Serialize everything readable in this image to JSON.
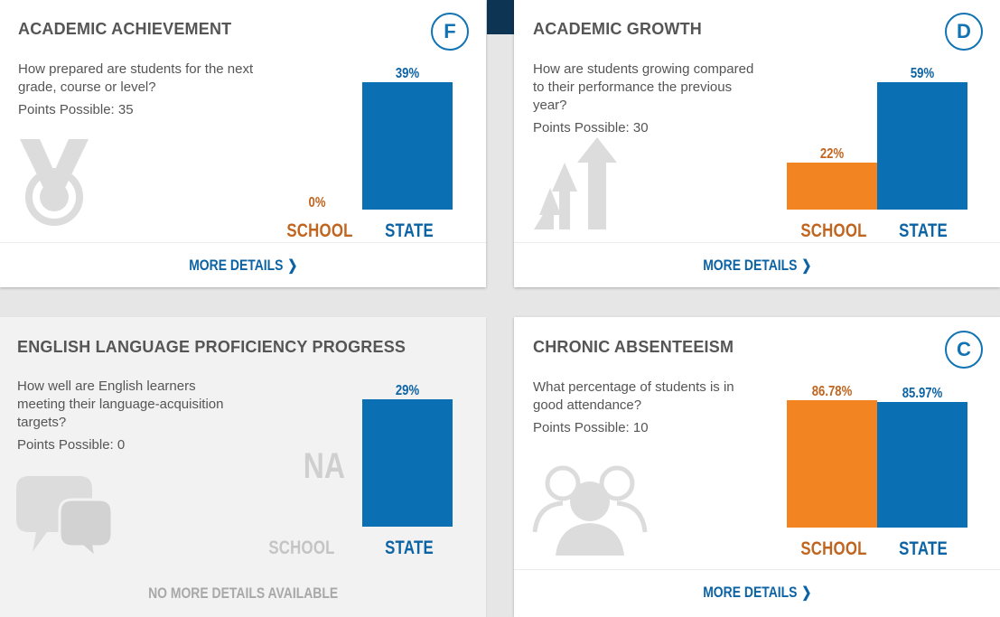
{
  "cards": {
    "academic_achievement": {
      "title": "ACADEMIC ACHIEVEMENT",
      "grade": "F",
      "description": "How prepared are students for the next grade, course or level?",
      "points": "Points Possible: 35",
      "icon": "medal-icon",
      "school": {
        "label": "SCHOOL",
        "value": 0,
        "value_label": "0%"
      },
      "state": {
        "label": "STATE",
        "value": 39,
        "value_label": "39%"
      },
      "link": "MORE DETAILS"
    },
    "academic_growth": {
      "title": "ACADEMIC GROWTH",
      "grade": "D",
      "description": "How are students growing compared to their performance the previous year?",
      "points": "Points Possible: 30",
      "icon": "growth-arrows-icon",
      "school": {
        "label": "SCHOOL",
        "value": 22,
        "value_label": "22%"
      },
      "state": {
        "label": "STATE",
        "value": 59,
        "value_label": "59%"
      },
      "link": "MORE DETAILS"
    },
    "english_proficiency": {
      "title": "ENGLISH LANGUAGE PROFICIENCY PROGRESS",
      "description": "How well are English learners meeting their language-acquisition targets?",
      "points": "Points Possible: 0",
      "icon": "speech-bubbles-icon",
      "school": {
        "label": "SCHOOL",
        "value_label": "NA"
      },
      "state": {
        "label": "STATE",
        "value": 29,
        "value_label": "29%"
      },
      "link": "NO MORE DETAILS AVAILABLE"
    },
    "chronic_absenteeism": {
      "title": "CHRONIC ABSENTEEISM",
      "grade": "C",
      "description": "What percentage of students is in good attendance?",
      "points": "Points Possible: 10",
      "icon": "people-group-icon",
      "school": {
        "label": "SCHOOL",
        "value": 86.78,
        "value_label": "86.78%"
      },
      "state": {
        "label": "STATE",
        "value": 85.97,
        "value_label": "85.97%"
      },
      "link": "MORE DETAILS"
    }
  },
  "colors": {
    "school": "#f28522",
    "state": "#0a6fb3",
    "accent": "#1173b4"
  }
}
